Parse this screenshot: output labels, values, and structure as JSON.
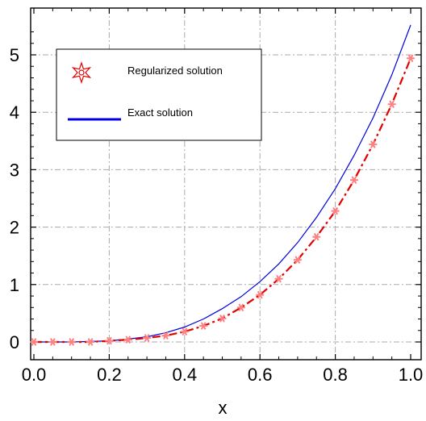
{
  "chart_data": {
    "type": "line",
    "xlabel": "x",
    "ylabel": "",
    "xlim": [
      0.0,
      1.0
    ],
    "ylim": [
      0,
      5.6
    ],
    "x_ticks": [
      "0.0",
      "0.2",
      "0.4",
      "0.6",
      "0.8",
      "1.0"
    ],
    "y_ticks": [
      "0",
      "1",
      "2",
      "3",
      "4",
      "5"
    ],
    "grid": true,
    "legend_position": "top-left",
    "series": [
      {
        "name": "Regularized solution",
        "style": "dash-dot with star markers",
        "color": "#e00000",
        "marker_color": "#ff8080",
        "x": [
          0.0,
          0.05,
          0.1,
          0.15,
          0.2,
          0.25,
          0.3,
          0.35,
          0.4,
          0.45,
          0.5,
          0.55,
          0.6,
          0.65,
          0.7,
          0.75,
          0.8,
          0.85,
          0.9,
          0.95,
          1.0
        ],
        "y": [
          0.0,
          0.0,
          0.0,
          0.0,
          0.02,
          0.04,
          0.07,
          0.11,
          0.18,
          0.28,
          0.41,
          0.6,
          0.82,
          1.1,
          1.43,
          1.83,
          2.28,
          2.82,
          3.44,
          4.14,
          4.94
        ]
      },
      {
        "name": "Exact solution",
        "style": "solid",
        "color": "#0000dd",
        "x": [
          0.0,
          0.05,
          0.1,
          0.15,
          0.2,
          0.25,
          0.3,
          0.35,
          0.4,
          0.45,
          0.5,
          0.55,
          0.6,
          0.65,
          0.7,
          0.75,
          0.8,
          0.85,
          0.9,
          0.95,
          1.0
        ],
        "y": [
          0.0,
          0.0,
          0.0,
          0.01,
          0.02,
          0.05,
          0.09,
          0.16,
          0.26,
          0.4,
          0.58,
          0.79,
          1.05,
          1.36,
          1.73,
          2.17,
          2.67,
          3.25,
          3.9,
          4.65,
          5.52
        ]
      }
    ]
  }
}
